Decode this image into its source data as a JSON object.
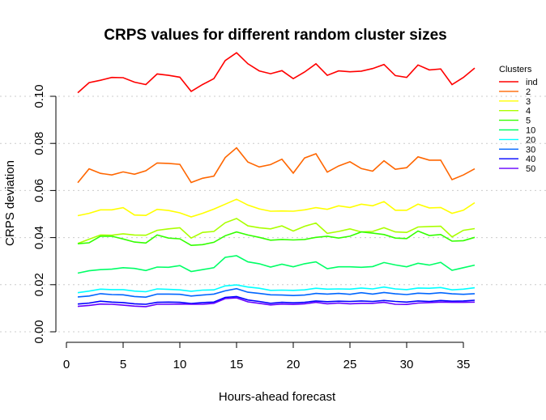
{
  "chart_data": {
    "type": "line",
    "title": "CRPS values for different random cluster sizes",
    "xlabel": "Hours-ahead forecast",
    "ylabel": "CRPS deviation",
    "xlim": [
      0,
      36
    ],
    "ylim": [
      0,
      0.11
    ],
    "x_ticks": [
      "0",
      "5",
      "10",
      "15",
      "20",
      "25",
      "30",
      "35"
    ],
    "y_ticks": [
      "0.00",
      "0.02",
      "0.04",
      "0.06",
      "0.08",
      "0.10"
    ],
    "x_tick_values": [
      0,
      5,
      10,
      15,
      20,
      25,
      30,
      35
    ],
    "y_tick_values": [
      0,
      0.02,
      0.04,
      0.06,
      0.08,
      0.1
    ],
    "grid": true,
    "legend_title": "Clusters",
    "legend_position": "top-right",
    "x": [
      1,
      2,
      3,
      4,
      5,
      6,
      7,
      8,
      9,
      10,
      11,
      12,
      13,
      14,
      15,
      16,
      17,
      18,
      19,
      20,
      21,
      22,
      23,
      24,
      25,
      26,
      27,
      28,
      29,
      30,
      31,
      32,
      33,
      34,
      35,
      36
    ],
    "series": [
      {
        "name": "ind",
        "color": "#ff0000",
        "values": [
          0.1015,
          0.1058,
          0.1068,
          0.108,
          0.1079,
          0.106,
          0.105,
          0.1095,
          0.1089,
          0.1081,
          0.1021,
          0.105,
          0.1075,
          0.1152,
          0.1185,
          0.1138,
          0.1108,
          0.1096,
          0.1109,
          0.1075,
          0.1103,
          0.1138,
          0.1089,
          0.1108,
          0.1104,
          0.1107,
          0.1118,
          0.1135,
          0.1088,
          0.108,
          0.1133,
          0.1112,
          0.1116,
          0.105,
          0.108,
          0.112
        ]
      },
      {
        "name": "2",
        "color": "#ff6600",
        "values": [
          0.0633,
          0.0692,
          0.0673,
          0.0666,
          0.0679,
          0.0669,
          0.0684,
          0.0717,
          0.0715,
          0.0711,
          0.0634,
          0.0652,
          0.0661,
          0.074,
          0.0781,
          0.0721,
          0.07,
          0.071,
          0.0733,
          0.0674,
          0.0738,
          0.0756,
          0.0678,
          0.0704,
          0.0722,
          0.0693,
          0.0682,
          0.0726,
          0.069,
          0.0697,
          0.0743,
          0.0729,
          0.0729,
          0.0646,
          0.0666,
          0.0692
        ]
      },
      {
        "name": "3",
        "color": "#ffff00",
        "values": [
          0.0493,
          0.0503,
          0.0518,
          0.0518,
          0.0527,
          0.0496,
          0.0494,
          0.052,
          0.0515,
          0.0505,
          0.0488,
          0.0503,
          0.0521,
          0.0542,
          0.0563,
          0.0538,
          0.0522,
          0.0512,
          0.0513,
          0.0512,
          0.0518,
          0.0527,
          0.052,
          0.0535,
          0.0528,
          0.0542,
          0.0535,
          0.0553,
          0.0516,
          0.0516,
          0.0542,
          0.0526,
          0.0528,
          0.0503,
          0.0516,
          0.0548
        ]
      },
      {
        "name": "4",
        "color": "#aaff00",
        "values": [
          0.0375,
          0.0393,
          0.0411,
          0.041,
          0.0416,
          0.0411,
          0.041,
          0.0431,
          0.0437,
          0.0442,
          0.0398,
          0.0422,
          0.0426,
          0.0463,
          0.0481,
          0.045,
          0.0442,
          0.0437,
          0.045,
          0.0428,
          0.0448,
          0.0462,
          0.0418,
          0.0426,
          0.0437,
          0.0424,
          0.0426,
          0.0442,
          0.0424,
          0.0422,
          0.0445,
          0.0447,
          0.0448,
          0.0403,
          0.0431,
          0.0438
        ]
      },
      {
        "name": "5",
        "color": "#33ff00",
        "values": [
          0.0374,
          0.0378,
          0.0406,
          0.0406,
          0.0394,
          0.0381,
          0.0377,
          0.0411,
          0.0398,
          0.0395,
          0.0367,
          0.037,
          0.038,
          0.0408,
          0.0424,
          0.0411,
          0.0401,
          0.0389,
          0.0392,
          0.039,
          0.0392,
          0.0401,
          0.0406,
          0.0398,
          0.0406,
          0.0424,
          0.0419,
          0.0413,
          0.0398,
          0.0396,
          0.0428,
          0.0409,
          0.0413,
          0.0385,
          0.0387,
          0.0401
        ]
      },
      {
        "name": "10",
        "color": "#00ff66",
        "values": [
          0.0249,
          0.0259,
          0.0264,
          0.0266,
          0.0272,
          0.0269,
          0.026,
          0.0275,
          0.0274,
          0.0281,
          0.0256,
          0.0264,
          0.0272,
          0.0316,
          0.0323,
          0.0297,
          0.0289,
          0.0275,
          0.0287,
          0.0276,
          0.0289,
          0.0297,
          0.0268,
          0.0276,
          0.0276,
          0.0274,
          0.0277,
          0.0294,
          0.0284,
          0.0276,
          0.0291,
          0.0283,
          0.0295,
          0.0261,
          0.0272,
          0.0283
        ]
      },
      {
        "name": "20",
        "color": "#00ffff",
        "values": [
          0.0166,
          0.0173,
          0.0181,
          0.0179,
          0.0179,
          0.0173,
          0.017,
          0.0182,
          0.018,
          0.0178,
          0.0172,
          0.0177,
          0.0178,
          0.0195,
          0.0199,
          0.019,
          0.0185,
          0.0176,
          0.0177,
          0.0176,
          0.0178,
          0.0185,
          0.0181,
          0.0182,
          0.0181,
          0.0186,
          0.0182,
          0.019,
          0.0182,
          0.0179,
          0.0186,
          0.0185,
          0.0188,
          0.0178,
          0.0181,
          0.0187
        ]
      },
      {
        "name": "30",
        "color": "#0066ff",
        "values": [
          0.0148,
          0.0152,
          0.0162,
          0.0158,
          0.0157,
          0.015,
          0.0147,
          0.016,
          0.016,
          0.0159,
          0.0152,
          0.0156,
          0.016,
          0.0174,
          0.0183,
          0.0168,
          0.0163,
          0.0157,
          0.0156,
          0.0154,
          0.0156,
          0.0163,
          0.016,
          0.0163,
          0.0159,
          0.0166,
          0.016,
          0.0167,
          0.0161,
          0.0158,
          0.0164,
          0.0162,
          0.0166,
          0.0161,
          0.0159,
          0.0162
        ]
      },
      {
        "name": "40",
        "color": "#0000ff",
        "values": [
          0.0118,
          0.0122,
          0.013,
          0.0126,
          0.0124,
          0.0119,
          0.0117,
          0.0125,
          0.0126,
          0.0125,
          0.012,
          0.0124,
          0.0126,
          0.0146,
          0.015,
          0.0135,
          0.0129,
          0.0121,
          0.0125,
          0.0123,
          0.0125,
          0.0131,
          0.0128,
          0.013,
          0.0129,
          0.0131,
          0.0129,
          0.0133,
          0.0129,
          0.0126,
          0.0131,
          0.0129,
          0.0133,
          0.013,
          0.0131,
          0.0134
        ]
      },
      {
        "name": "50",
        "color": "#6600ff",
        "values": [
          0.0108,
          0.0112,
          0.0118,
          0.0117,
          0.0113,
          0.0109,
          0.0107,
          0.0117,
          0.0117,
          0.0118,
          0.0117,
          0.0117,
          0.0121,
          0.0141,
          0.0144,
          0.0127,
          0.0121,
          0.0114,
          0.0118,
          0.0116,
          0.0119,
          0.0125,
          0.0119,
          0.0122,
          0.0119,
          0.0121,
          0.0121,
          0.0125,
          0.0117,
          0.0116,
          0.0122,
          0.0124,
          0.0126,
          0.0125,
          0.0125,
          0.0126
        ]
      }
    ]
  }
}
